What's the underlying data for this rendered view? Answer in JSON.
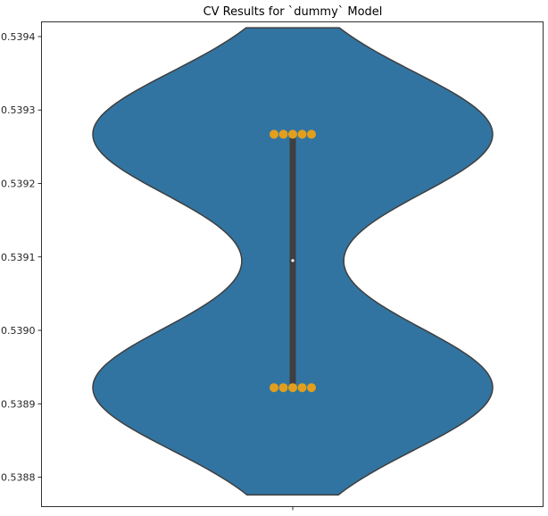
{
  "chart_data": {
    "type": "violin",
    "title": "CV Results for `dummy` Model",
    "xlabel": "",
    "ylabel": "",
    "ylim": [
      0.53876,
      0.53942
    ],
    "yticks": [
      0.5388,
      0.5389,
      0.539,
      0.5391,
      0.5392,
      0.5393,
      0.5394
    ],
    "ytick_labels": [
      "0.5388",
      "0.5389",
      "0.5390",
      "0.5391",
      "0.5392",
      "0.5393",
      "0.5394"
    ],
    "grid": false,
    "violin": {
      "color": "#3274a1",
      "edge_color": "#3f3f3f",
      "extent": [
        0.538776,
        0.539412
      ],
      "median": 0.539095,
      "q1": 0.538922,
      "q3": 0.539267
    },
    "points": {
      "color": "#e29f1d",
      "low_value": 0.538922,
      "high_value": 0.539267,
      "low_count": 5,
      "high_count": 5
    }
  }
}
